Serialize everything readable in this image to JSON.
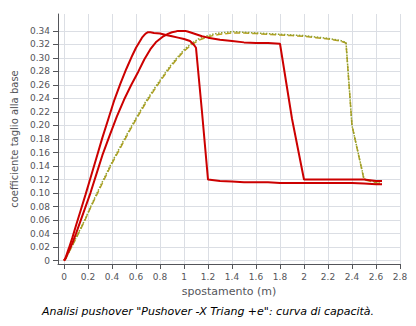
{
  "chart_data": {
    "type": "line",
    "title": "Analisi pushover \"Pushover -X Triang +e\": curva di capacità.",
    "xlabel": "spostamento (m)",
    "ylabel": "coefficiente taglio alla base",
    "xlim": [
      -0.05,
      2.8
    ],
    "ylim": [
      -0.005,
      0.365
    ],
    "xticks": [
      0,
      0.2,
      0.4,
      0.6,
      0.8,
      1,
      1.2,
      1.4,
      1.6,
      1.8,
      2,
      2.2,
      2.4,
      2.6,
      2.8
    ],
    "yticks": [
      0,
      0.02,
      0.04,
      0.06,
      0.08,
      {
        "value": 0.1,
        "label": "0.10"
      },
      0.12,
      0.14,
      0.16,
      0.18,
      {
        "value": 0.2,
        "label": "0.20"
      },
      0.22,
      0.24,
      0.26,
      0.28,
      {
        "value": 0.3,
        "label": "0.30"
      },
      0.32,
      0.34
    ],
    "grid": true,
    "series": [
      {
        "color": "#b8a020",
        "line_style": "dashed",
        "x": [
          0,
          0.01,
          0.02,
          0.04,
          0.08,
          0.12,
          0.17,
          0.22,
          0.28,
          0.34,
          0.4,
          0.47,
          0.54,
          0.61,
          0.68,
          0.75,
          0.82,
          0.88,
          0.94,
          1.0,
          1.06,
          1.12,
          1.18,
          1.24,
          1.3,
          1.36,
          1.4,
          1.5,
          1.6,
          1.7,
          1.8,
          1.9,
          2.0,
          2.1,
          2.2,
          2.3,
          2.35,
          2.4,
          2.5,
          2.6,
          2.65
        ],
        "values": [
          0,
          0.002,
          0.005,
          0.012,
          0.026,
          0.04,
          0.058,
          0.078,
          0.1,
          0.122,
          0.144,
          0.167,
          0.19,
          0.212,
          0.233,
          0.252,
          0.27,
          0.285,
          0.298,
          0.31,
          0.319,
          0.326,
          0.33,
          0.333,
          0.335,
          0.336,
          0.337,
          0.337,
          0.336,
          0.335,
          0.334,
          0.333,
          0.332,
          0.33,
          0.328,
          0.325,
          0.322,
          0.2,
          0.12,
          0.115,
          0.113
        ]
      },
      {
        "color": "#90a030",
        "line_style": "dotted",
        "x": [
          0,
          0.01,
          0.02,
          0.04,
          0.08,
          0.12,
          0.17,
          0.22,
          0.28,
          0.34,
          0.4,
          0.47,
          0.54,
          0.61,
          0.68,
          0.75,
          0.82,
          0.88,
          0.94,
          1.0,
          1.06,
          1.12,
          1.18,
          1.24,
          1.3,
          1.36,
          1.4,
          1.5,
          1.6,
          1.7,
          1.8,
          1.9,
          2.0,
          2.1,
          2.2,
          2.3,
          2.35,
          2.4,
          2.5,
          2.6,
          2.65
        ],
        "values": [
          0,
          0.002,
          0.005,
          0.012,
          0.026,
          0.041,
          0.059,
          0.079,
          0.102,
          0.124,
          0.146,
          0.169,
          0.192,
          0.214,
          0.235,
          0.254,
          0.272,
          0.287,
          0.3,
          0.312,
          0.321,
          0.328,
          0.332,
          0.335,
          0.337,
          0.338,
          0.339,
          0.338,
          0.337,
          0.336,
          0.335,
          0.334,
          0.333,
          0.331,
          0.329,
          0.326,
          0.323,
          0.2,
          0.121,
          0.116,
          0.114
        ]
      },
      {
        "color": "#cc0000",
        "line_style": "solid",
        "x": [
          0,
          0.01,
          0.02,
          0.04,
          0.07,
          0.1,
          0.14,
          0.18,
          0.22,
          0.27,
          0.32,
          0.37,
          0.42,
          0.47,
          0.52,
          0.57,
          0.6,
          0.63,
          0.65,
          0.67,
          0.68,
          0.69,
          0.7,
          0.72,
          0.75,
          0.8,
          0.85,
          0.9,
          0.95,
          1.0,
          1.05,
          1.08,
          1.1,
          1.15,
          1.2,
          1.3,
          1.4,
          1.5,
          1.6,
          1.7,
          1.8,
          1.9,
          2.0,
          2.1,
          2.2,
          2.3,
          2.4,
          2.5,
          2.6,
          2.65
        ],
        "values": [
          0,
          0.003,
          0.008,
          0.018,
          0.034,
          0.052,
          0.075,
          0.098,
          0.122,
          0.152,
          0.182,
          0.21,
          0.238,
          0.262,
          0.284,
          0.304,
          0.315,
          0.324,
          0.33,
          0.334,
          0.336,
          0.337,
          0.338,
          0.338,
          0.337,
          0.336,
          0.334,
          0.332,
          0.33,
          0.328,
          0.325,
          0.32,
          0.315,
          0.22,
          0.12,
          0.118,
          0.117,
          0.116,
          0.116,
          0.116,
          0.115,
          0.115,
          0.115,
          0.115,
          0.115,
          0.115,
          0.115,
          0.114,
          0.113,
          0.113
        ]
      },
      {
        "color": "#cc0000",
        "line_style": "solid",
        "x": [
          0,
          0.01,
          0.02,
          0.04,
          0.07,
          0.1,
          0.14,
          0.18,
          0.22,
          0.27,
          0.32,
          0.38,
          0.44,
          0.5,
          0.56,
          0.62,
          0.67,
          0.72,
          0.77,
          0.82,
          0.87,
          0.9,
          0.93,
          0.95,
          0.97,
          0.99,
          1.01,
          1.03,
          1.05,
          1.1,
          1.15,
          1.2,
          1.3,
          1.4,
          1.5,
          1.6,
          1.7,
          1.8,
          1.9,
          2.0,
          2.1,
          2.2,
          2.3,
          2.4,
          2.5,
          2.6,
          2.65
        ],
        "values": [
          0,
          0.002,
          0.006,
          0.014,
          0.026,
          0.04,
          0.06,
          0.08,
          0.1,
          0.128,
          0.156,
          0.185,
          0.213,
          0.238,
          0.26,
          0.28,
          0.298,
          0.313,
          0.324,
          0.331,
          0.336,
          0.338,
          0.339,
          0.34,
          0.34,
          0.34,
          0.34,
          0.339,
          0.338,
          0.335,
          0.332,
          0.33,
          0.327,
          0.325,
          0.323,
          0.322,
          0.322,
          0.321,
          0.21,
          0.12,
          0.12,
          0.12,
          0.12,
          0.12,
          0.12,
          0.118,
          0.118
        ]
      }
    ]
  }
}
